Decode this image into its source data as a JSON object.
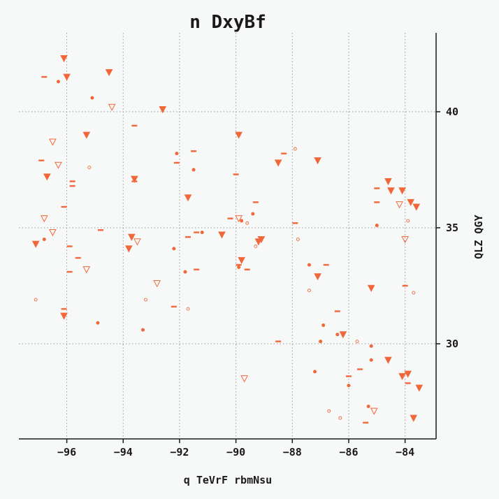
{
  "chart_data": {
    "type": "scatter",
    "title": "n DxyBf",
    "xlabel": "q TeVrF rbmNsu",
    "ylabel": "QLZ QGY",
    "xlim": [
      -97.7,
      -82.9
    ],
    "ylim": [
      25.9,
      43.4
    ],
    "xticks": [
      -96,
      -94,
      -92,
      -90,
      -88,
      -86,
      -84
    ],
    "yticks": [
      30,
      35,
      40
    ],
    "xtick_labels": [
      "−96",
      "−94",
      "−92",
      "−90",
      "−88",
      "−86",
      "−84"
    ],
    "ytick_labels": [
      "30",
      "35",
      "40"
    ],
    "grid": true,
    "colors": {
      "marker": "#f0683a"
    },
    "series": [
      {
        "marker": "triangle-down-filled",
        "points": [
          [
            -96.1,
            42.3
          ],
          [
            -96.0,
            41.5
          ],
          [
            -94.5,
            41.7
          ],
          [
            -92.6,
            40.1
          ],
          [
            -95.3,
            39.0
          ],
          [
            -89.9,
            39.0
          ],
          [
            -87.1,
            37.9
          ],
          [
            -88.5,
            37.8
          ],
          [
            -96.7,
            37.2
          ],
          [
            -93.6,
            37.1
          ],
          [
            -91.7,
            36.3
          ],
          [
            -84.6,
            37.0
          ],
          [
            -84.5,
            36.6
          ],
          [
            -84.1,
            36.6
          ],
          [
            -83.8,
            36.1
          ],
          [
            -83.6,
            35.9
          ],
          [
            -93.7,
            34.6
          ],
          [
            -90.5,
            34.7
          ],
          [
            -89.2,
            34.4
          ],
          [
            -89.1,
            34.5
          ],
          [
            -97.1,
            34.3
          ],
          [
            -93.8,
            34.1
          ],
          [
            -89.8,
            33.6
          ],
          [
            -87.1,
            32.9
          ],
          [
            -85.2,
            32.4
          ],
          [
            -96.1,
            31.2
          ],
          [
            -86.2,
            30.4
          ],
          [
            -84.6,
            29.3
          ],
          [
            -84.1,
            28.6
          ],
          [
            -83.9,
            28.7
          ],
          [
            -83.5,
            28.1
          ],
          [
            -83.7,
            26.8
          ]
        ]
      },
      {
        "marker": "triangle-down-open",
        "points": [
          [
            -94.4,
            40.2
          ],
          [
            -96.5,
            38.7
          ],
          [
            -96.3,
            37.7
          ],
          [
            -96.8,
            35.4
          ],
          [
            -96.5,
            34.8
          ],
          [
            -93.5,
            34.4
          ],
          [
            -95.3,
            33.2
          ],
          [
            -92.8,
            32.6
          ],
          [
            -89.9,
            35.4
          ],
          [
            -84.2,
            36.0
          ],
          [
            -84.0,
            34.5
          ],
          [
            -89.7,
            28.5
          ],
          [
            -85.1,
            27.1
          ]
        ]
      },
      {
        "marker": "dash",
        "points": [
          [
            -96.8,
            41.5
          ],
          [
            -96.9,
            37.9
          ],
          [
            -95.8,
            37.0
          ],
          [
            -95.8,
            36.8
          ],
          [
            -96.1,
            35.9
          ],
          [
            -93.6,
            39.4
          ],
          [
            -92.1,
            37.8
          ],
          [
            -91.5,
            38.3
          ],
          [
            -93.6,
            37.0
          ],
          [
            -90.0,
            37.3
          ],
          [
            -88.3,
            38.2
          ],
          [
            -89.3,
            36.1
          ],
          [
            -90.2,
            35.4
          ],
          [
            -87.9,
            35.2
          ],
          [
            -94.8,
            34.9
          ],
          [
            -91.7,
            34.6
          ],
          [
            -91.4,
            34.8
          ],
          [
            -95.9,
            34.2
          ],
          [
            -95.6,
            33.7
          ],
          [
            -95.9,
            33.1
          ],
          [
            -91.4,
            33.2
          ],
          [
            -89.9,
            33.4
          ],
          [
            -89.6,
            33.2
          ],
          [
            -86.8,
            33.4
          ],
          [
            -92.2,
            31.6
          ],
          [
            -96.1,
            31.5
          ],
          [
            -85.0,
            36.7
          ],
          [
            -85.0,
            36.1
          ],
          [
            -84.0,
            32.5
          ],
          [
            -86.4,
            31.4
          ],
          [
            -88.5,
            30.1
          ],
          [
            -85.6,
            28.9
          ],
          [
            -86.0,
            28.6
          ],
          [
            -83.9,
            28.3
          ],
          [
            -85.4,
            26.6
          ]
        ]
      },
      {
        "marker": "dot-filled",
        "points": [
          [
            -96.3,
            41.3
          ],
          [
            -95.1,
            40.6
          ],
          [
            -92.1,
            38.2
          ],
          [
            -91.5,
            37.5
          ],
          [
            -93.6,
            37.1
          ],
          [
            -89.8,
            35.3
          ],
          [
            -89.4,
            35.6
          ],
          [
            -85.0,
            35.1
          ],
          [
            -96.8,
            34.5
          ],
          [
            -91.2,
            34.8
          ],
          [
            -92.2,
            34.1
          ],
          [
            -91.8,
            33.1
          ],
          [
            -89.9,
            33.3
          ],
          [
            -87.4,
            33.4
          ],
          [
            -94.9,
            30.9
          ],
          [
            -93.3,
            30.6
          ],
          [
            -86.9,
            30.8
          ],
          [
            -87.0,
            30.1
          ],
          [
            -86.4,
            30.4
          ],
          [
            -85.2,
            29.9
          ],
          [
            -85.2,
            29.3
          ],
          [
            -87.2,
            28.8
          ],
          [
            -86.0,
            28.2
          ],
          [
            -85.3,
            27.3
          ]
        ]
      },
      {
        "marker": "dot-open",
        "points": [
          [
            -95.2,
            37.6
          ],
          [
            -87.9,
            38.4
          ],
          [
            -89.6,
            35.2
          ],
          [
            -89.3,
            34.2
          ],
          [
            -87.8,
            34.5
          ],
          [
            -87.4,
            32.3
          ],
          [
            -93.2,
            31.9
          ],
          [
            -91.7,
            31.5
          ],
          [
            -97.1,
            31.9
          ],
          [
            -85.7,
            30.1
          ],
          [
            -86.7,
            27.1
          ],
          [
            -86.3,
            26.8
          ],
          [
            -83.9,
            35.3
          ],
          [
            -83.7,
            32.2
          ]
        ]
      }
    ]
  }
}
